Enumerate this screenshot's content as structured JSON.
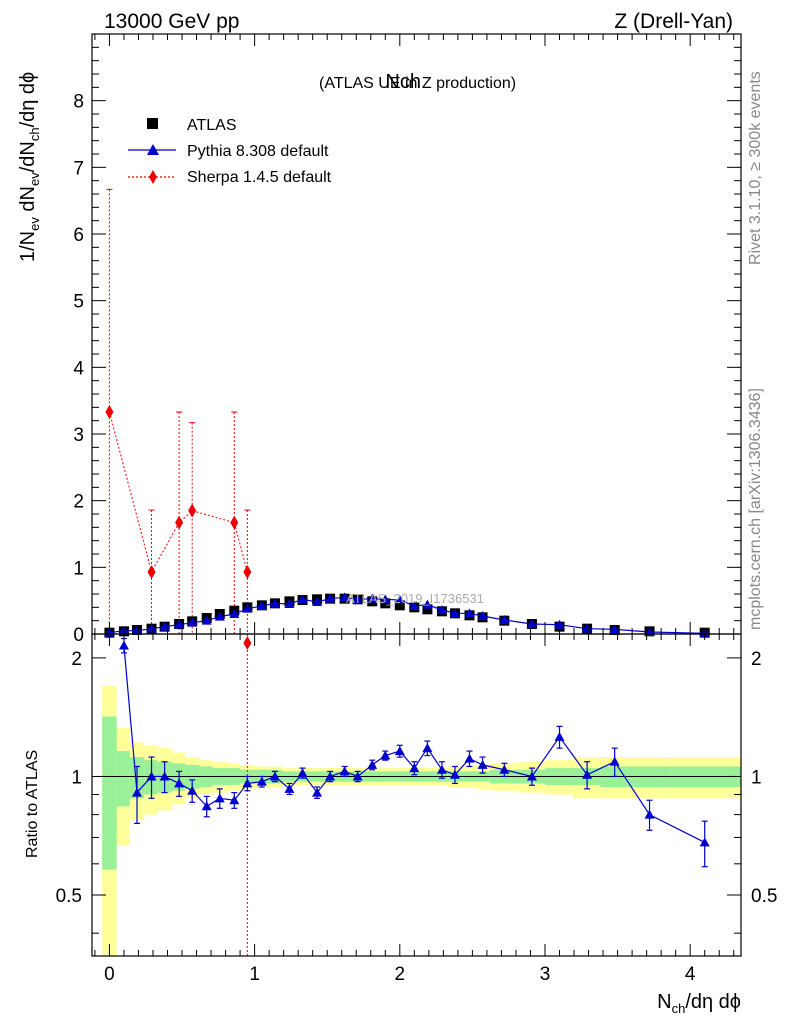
{
  "header": {
    "left": "13000 GeV pp",
    "right": "Z (Drell-Yan)"
  },
  "side_text": {
    "top": "Rivet 3.1.10, ≥ 300k events",
    "bottom": "mcplots.cern.ch [arXiv:1306.3436]"
  },
  "watermark": "ATLAS_2019_I1736531",
  "chart_data": {
    "type": "scatter",
    "title_main": "Nch",
    "title_sub": "(ATLAS UE in Z production)",
    "xlabel": "N_ch/dη dϕ",
    "ylabel_top": "1/N_ev dN_ev/dN_ch/dη dϕ",
    "ylabel_bottom": "Ratio to ATLAS",
    "xlim": [
      -0.12,
      4.35
    ],
    "ylim_top": [
      0,
      9
    ],
    "ylim_bottom": [
      0.35,
      2.3
    ],
    "x_ticks": [
      "0",
      "1",
      "2",
      "3",
      "4"
    ],
    "y_ticks_top": [
      "0",
      "1",
      "2",
      "3",
      "4",
      "5",
      "6",
      "7",
      "8"
    ],
    "y_ticks_bottom": [
      "0.5",
      "1",
      "2"
    ],
    "legend": [
      "ATLAS",
      "Pythia 8.308 default",
      "Sherpa 1.4.5 default"
    ],
    "colors": {
      "atlas": "#000000",
      "pythia": "#0000cc",
      "sherpa": "#ee0000",
      "band_inner": "#99f099",
      "band_outer": "#ffff99"
    },
    "atlas": {
      "x": [
        0.0,
        0.1,
        0.19,
        0.29,
        0.38,
        0.48,
        0.57,
        0.67,
        0.76,
        0.86,
        0.95,
        1.05,
        1.14,
        1.24,
        1.33,
        1.43,
        1.52,
        1.62,
        1.71,
        1.81,
        1.9,
        2.0,
        2.1,
        2.19,
        2.29,
        2.38,
        2.48,
        2.57,
        2.72,
        2.91,
        3.1,
        3.29,
        3.48,
        3.72,
        4.1
      ],
      "y": [
        0.02,
        0.04,
        0.06,
        0.08,
        0.11,
        0.15,
        0.19,
        0.24,
        0.3,
        0.35,
        0.4,
        0.43,
        0.46,
        0.49,
        0.51,
        0.52,
        0.53,
        0.53,
        0.52,
        0.49,
        0.46,
        0.43,
        0.4,
        0.37,
        0.34,
        0.31,
        0.28,
        0.25,
        0.2,
        0.15,
        0.11,
        0.08,
        0.06,
        0.04,
        0.02
      ]
    },
    "pythia": {
      "x": [
        0.0,
        0.1,
        0.19,
        0.29,
        0.38,
        0.48,
        0.57,
        0.67,
        0.76,
        0.86,
        0.95,
        1.05,
        1.14,
        1.24,
        1.33,
        1.43,
        1.52,
        1.62,
        1.71,
        1.81,
        1.9,
        2.0,
        2.1,
        2.19,
        2.29,
        2.38,
        2.48,
        2.57,
        2.72,
        2.91,
        3.1,
        3.29,
        3.48,
        3.72,
        4.1
      ],
      "y": [
        0.02,
        0.05,
        0.05,
        0.08,
        0.11,
        0.14,
        0.17,
        0.2,
        0.26,
        0.3,
        0.38,
        0.42,
        0.46,
        0.45,
        0.52,
        0.48,
        0.53,
        0.55,
        0.52,
        0.53,
        0.52,
        0.51,
        0.42,
        0.44,
        0.36,
        0.31,
        0.31,
        0.27,
        0.21,
        0.15,
        0.14,
        0.08,
        0.07,
        0.03,
        0.01
      ],
      "ratio": [
        null,
        2.15,
        0.91,
        1.0,
        1.0,
        0.96,
        0.92,
        0.84,
        0.88,
        0.87,
        0.96,
        0.97,
        1.0,
        0.93,
        1.02,
        0.91,
        1.0,
        1.03,
        1.0,
        1.07,
        1.13,
        1.16,
        1.05,
        1.18,
        1.04,
        1.01,
        1.11,
        1.07,
        1.04,
        1.0,
        1.26,
        1.01,
        1.09,
        0.8,
        0.68
      ],
      "ratio_err": [
        0,
        0.09,
        0.15,
        0.12,
        0.09,
        0.07,
        0.06,
        0.05,
        0.05,
        0.04,
        0.04,
        0.03,
        0.03,
        0.03,
        0.03,
        0.03,
        0.03,
        0.03,
        0.03,
        0.03,
        0.03,
        0.04,
        0.04,
        0.05,
        0.05,
        0.05,
        0.05,
        0.05,
        0.04,
        0.05,
        0.08,
        0.08,
        0.09,
        0.07,
        0.09
      ]
    },
    "sherpa": {
      "x": [
        0.0,
        0.29,
        0.48,
        0.57,
        0.86,
        0.95
      ],
      "y": [
        3.33,
        0.93,
        1.67,
        1.85,
        1.67,
        0.93
      ],
      "err_lo": [
        3.33,
        0.93,
        1.67,
        1.85,
        1.67,
        0.93
      ],
      "err_hi": [
        3.34,
        0.93,
        1.66,
        1.32,
        1.66,
        0.93
      ],
      "ratio_x": 0.95
    },
    "bands": {
      "edges": [
        -0.05,
        0.05,
        0.14,
        0.24,
        0.33,
        0.43,
        0.52,
        0.62,
        0.71,
        0.81,
        0.9,
        1.0,
        1.1,
        1.19,
        1.29,
        1.38,
        1.48,
        1.57,
        1.67,
        1.76,
        1.86,
        1.95,
        2.05,
        2.14,
        2.24,
        2.33,
        2.43,
        2.52,
        2.62,
        2.81,
        3.0,
        3.19,
        3.38,
        3.57,
        3.86,
        4.35
      ],
      "inner": [
        0.42,
        0.16,
        0.12,
        0.1,
        0.09,
        0.08,
        0.07,
        0.06,
        0.05,
        0.05,
        0.04,
        0.04,
        0.04,
        0.03,
        0.03,
        0.03,
        0.03,
        0.03,
        0.03,
        0.03,
        0.03,
        0.03,
        0.03,
        0.03,
        0.03,
        0.03,
        0.03,
        0.03,
        0.04,
        0.04,
        0.05,
        0.05,
        0.06,
        0.06,
        0.06
      ],
      "outer": [
        0.7,
        0.33,
        0.22,
        0.2,
        0.18,
        0.15,
        0.12,
        0.1,
        0.09,
        0.08,
        0.07,
        0.06,
        0.06,
        0.05,
        0.05,
        0.05,
        0.05,
        0.05,
        0.05,
        0.05,
        0.05,
        0.05,
        0.05,
        0.05,
        0.05,
        0.06,
        0.06,
        0.07,
        0.08,
        0.09,
        0.1,
        0.12,
        0.12,
        0.12,
        0.12
      ]
    }
  }
}
